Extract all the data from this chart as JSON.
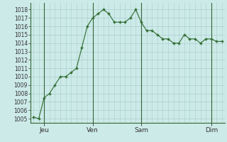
{
  "x_values": [
    0,
    1,
    2,
    3,
    4,
    5,
    6,
    7,
    8,
    9,
    10,
    11,
    12,
    13,
    14,
    15,
    16,
    17,
    18,
    19,
    20,
    21,
    22,
    23,
    24,
    25,
    26,
    27,
    28,
    29,
    30,
    31,
    32,
    33,
    34,
    35
  ],
  "y_values": [
    1005.2,
    1005.0,
    1007.5,
    1008.0,
    1009.0,
    1010.0,
    1010.0,
    1010.5,
    1011.0,
    1013.5,
    1016.0,
    1017.0,
    1017.5,
    1018.0,
    1017.5,
    1016.5,
    1016.5,
    1016.5,
    1017.0,
    1018.0,
    1016.5,
    1015.5,
    1015.5,
    1015.0,
    1014.5,
    1014.5,
    1014.0,
    1014.0,
    1015.0,
    1014.5,
    1014.5,
    1014.0,
    1014.5,
    1014.5,
    1014.2,
    1014.2
  ],
  "day_labels": [
    "Jeu",
    "Ven",
    "Sam",
    "Dim"
  ],
  "day_positions": [
    2,
    11,
    20,
    33
  ],
  "ylim": [
    1004.5,
    1018.8
  ],
  "xlim": [
    -0.5,
    35.5
  ],
  "yticks": [
    1005,
    1006,
    1007,
    1008,
    1009,
    1010,
    1011,
    1012,
    1013,
    1014,
    1015,
    1016,
    1017,
    1018
  ],
  "line_color": "#2d6a2d",
  "marker_color": "#2d6a2d",
  "bg_color": "#cceae8",
  "grid_color": "#aacece",
  "tick_label_fontsize": 5.5,
  "day_label_fontsize": 6.5,
  "vline_color": "#336633",
  "bottom_line_color": "#336633"
}
